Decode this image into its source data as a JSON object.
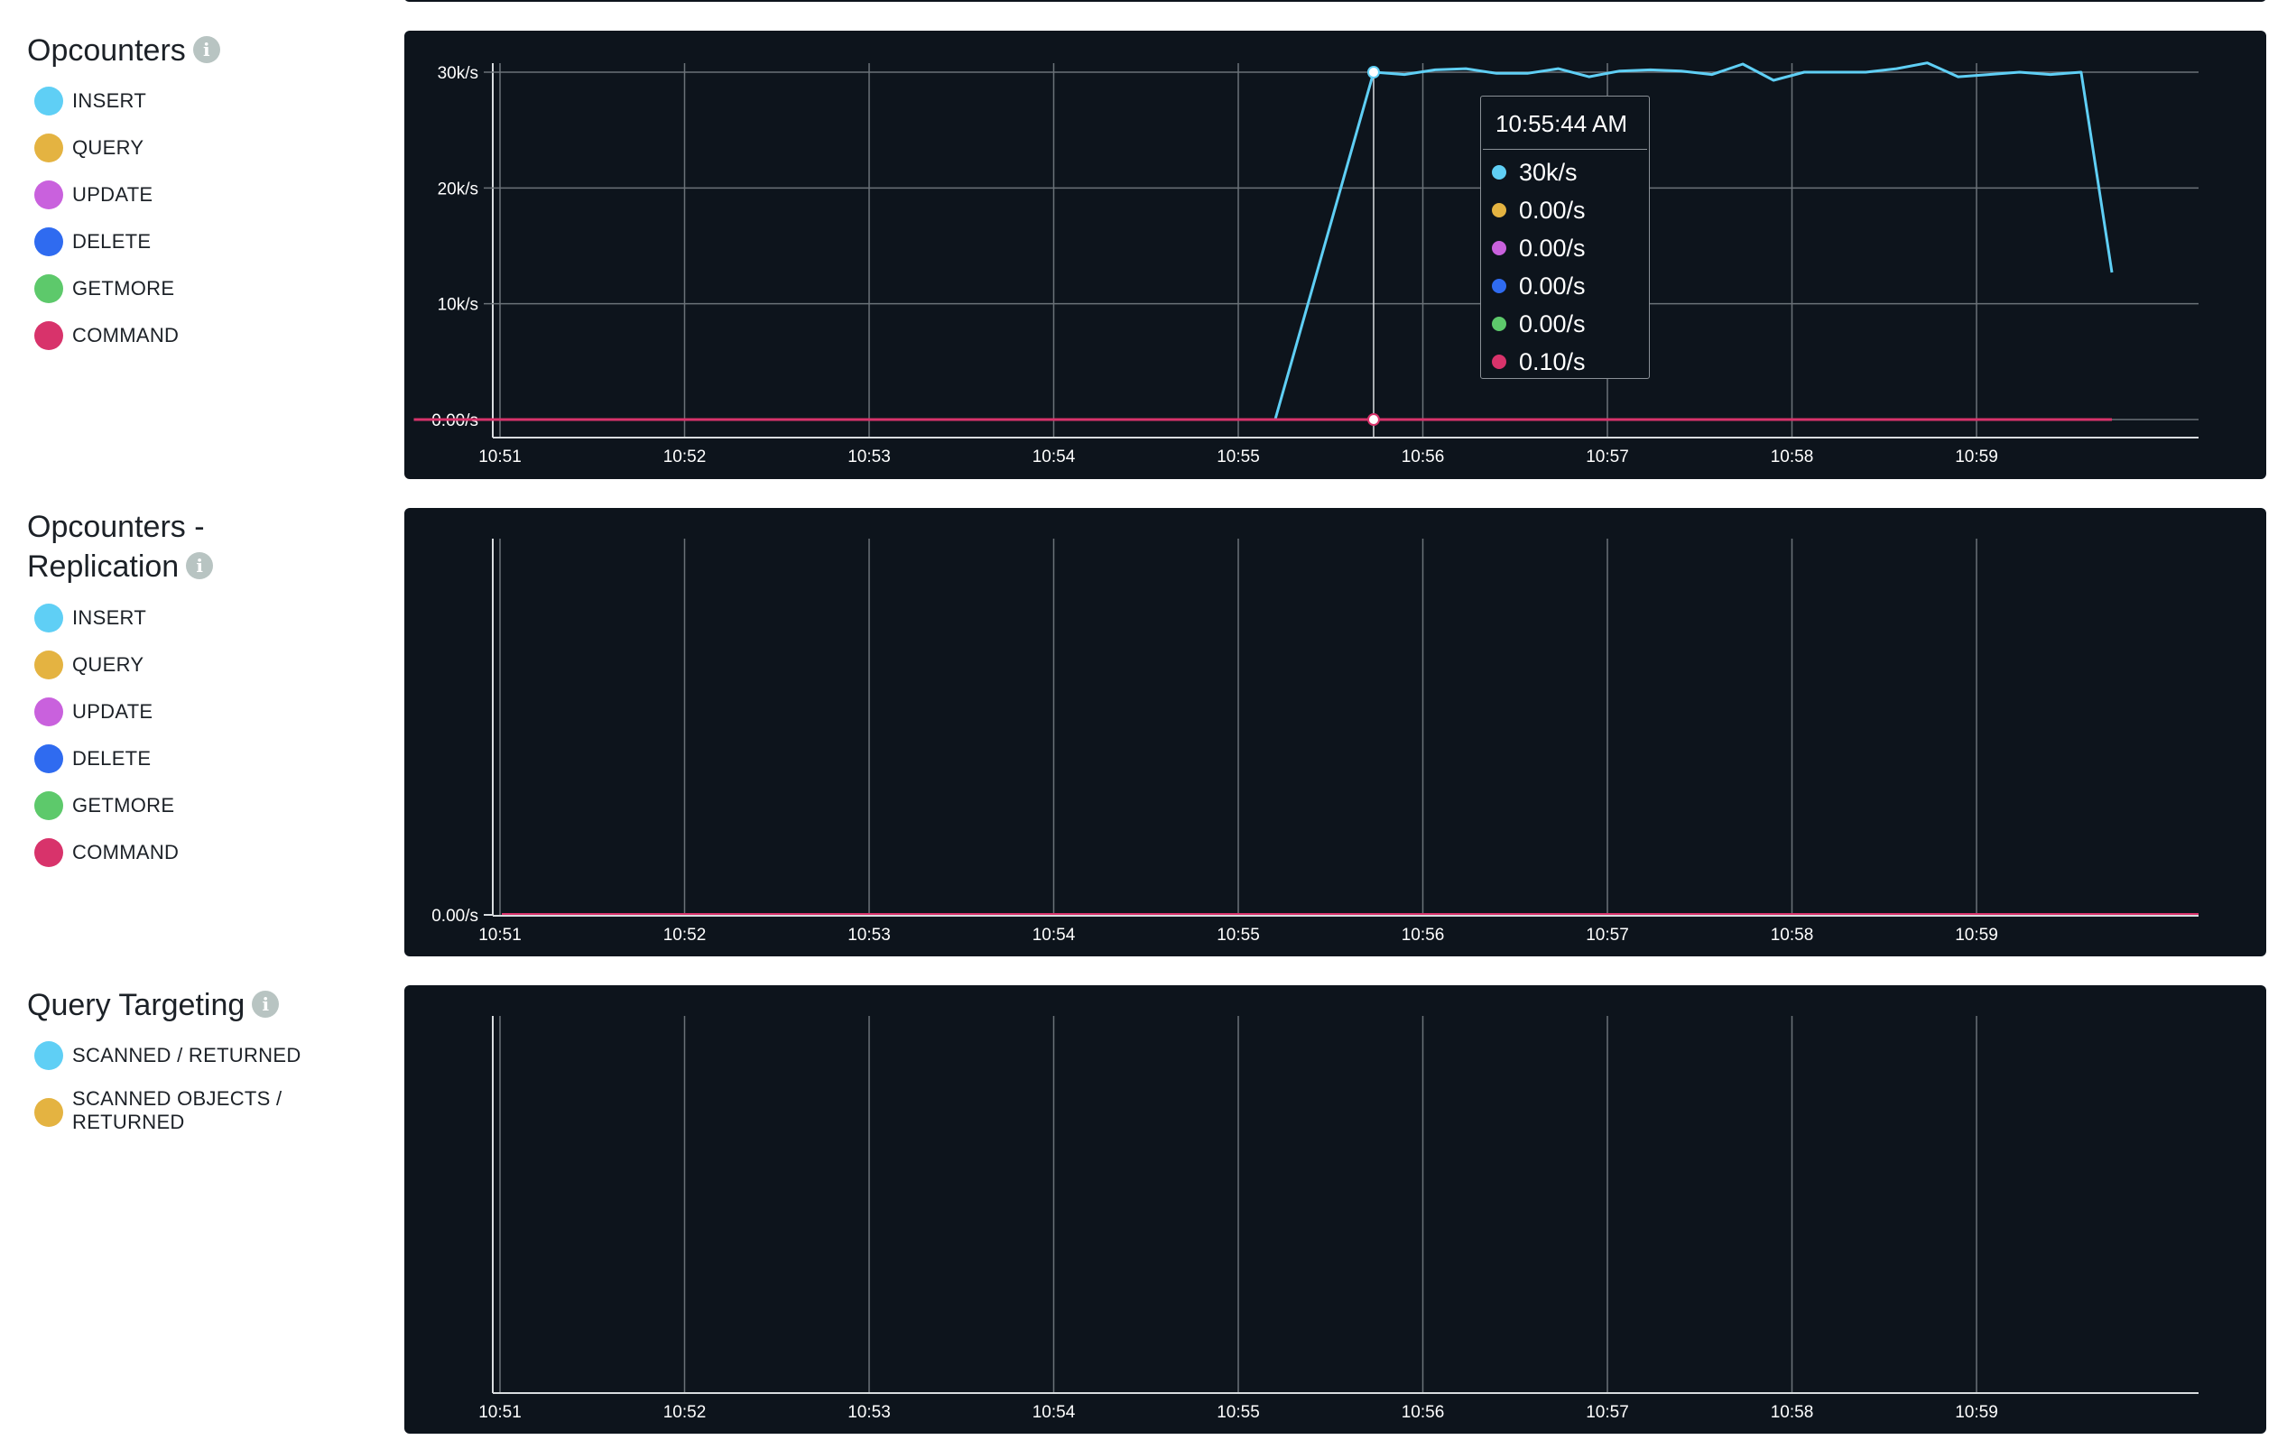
{
  "x_ticks": [
    "10:51",
    "10:52",
    "10:53",
    "10:54",
    "10:55",
    "10:56",
    "10:57",
    "10:58",
    "10:59"
  ],
  "colors": {
    "insert": "#5fcff5",
    "query": "#e4b341",
    "update": "#c961dd",
    "delete": "#2f6bf0",
    "getmore": "#5dc96b",
    "command": "#d8336b",
    "panel_bg": "#0d141c",
    "grid": "#6b7278"
  },
  "sections": [
    {
      "title": "Opcounters",
      "info_icon": "info-icon",
      "legend": [
        "INSERT",
        "QUERY",
        "UPDATE",
        "DELETE",
        "GETMORE",
        "COMMAND"
      ],
      "legend_colors": [
        "#5fcff5",
        "#e4b341",
        "#c961dd",
        "#2f6bf0",
        "#5dc96b",
        "#d8336b"
      ]
    },
    {
      "title_line1": "Opcounters -",
      "title_line2": "Replication",
      "info_icon": "info-icon",
      "legend": [
        "INSERT",
        "QUERY",
        "UPDATE",
        "DELETE",
        "GETMORE",
        "COMMAND"
      ],
      "legend_colors": [
        "#5fcff5",
        "#e4b341",
        "#c961dd",
        "#2f6bf0",
        "#5dc96b",
        "#d8336b"
      ]
    },
    {
      "title": "Query Targeting",
      "info_icon": "info-icon",
      "legend_item1": "SCANNED / RETURNED",
      "legend_item2_line1": "SCANNED OBJECTS /",
      "legend_item2_line2": "RETURNED",
      "legend_colors": [
        "#5fcff5",
        "#e4b341"
      ]
    }
  ],
  "chart_data": [
    {
      "type": "line",
      "y_ticks": [
        "0.00/s",
        "10k/s",
        "20k/s",
        "30k/s"
      ],
      "ylim": [
        0,
        30000
      ],
      "x_domain": [
        "10:50:28",
        "10:59:44"
      ],
      "series": [
        {
          "name": "INSERT",
          "color": "#5fcff5",
          "points": [
            [
              "10:50:32",
              0
            ],
            [
              "10:55:12",
              0
            ],
            [
              "10:55:44",
              30000
            ],
            [
              "10:55:54",
              29800
            ],
            [
              "10:56:04",
              30200
            ],
            [
              "10:56:14",
              30300
            ],
            [
              "10:56:24",
              29900
            ],
            [
              "10:56:34",
              29900
            ],
            [
              "10:56:44",
              30300
            ],
            [
              "10:56:54",
              29600
            ],
            [
              "10:57:04",
              30100
            ],
            [
              "10:57:14",
              30200
            ],
            [
              "10:57:24",
              30100
            ],
            [
              "10:57:34",
              29800
            ],
            [
              "10:57:44",
              30700
            ],
            [
              "10:57:54",
              29300
            ],
            [
              "10:58:04",
              30000
            ],
            [
              "10:58:14",
              30000
            ],
            [
              "10:58:24",
              30000
            ],
            [
              "10:58:34",
              30300
            ],
            [
              "10:58:44",
              30800
            ],
            [
              "10:58:54",
              29600
            ],
            [
              "10:59:04",
              29800
            ],
            [
              "10:59:14",
              30000
            ],
            [
              "10:59:24",
              29800
            ],
            [
              "10:59:34",
              30000
            ],
            [
              "10:59:44",
              12700
            ]
          ]
        },
        {
          "name": "QUERY",
          "color": "#e4b341",
          "constant": 0
        },
        {
          "name": "UPDATE",
          "color": "#c961dd",
          "constant": 0
        },
        {
          "name": "DELETE",
          "color": "#2f6bf0",
          "constant": 0
        },
        {
          "name": "GETMORE",
          "color": "#5dc96b",
          "constant": 0
        },
        {
          "name": "COMMAND",
          "color": "#d8336b",
          "constant": 0.1
        }
      ],
      "tooltip": {
        "time": "10:55:44 AM",
        "values": [
          "30k/s",
          "0.00/s",
          "0.00/s",
          "0.00/s",
          "0.00/s",
          "0.10/s"
        ],
        "colors": [
          "#5fcff5",
          "#e4b341",
          "#c961dd",
          "#2f6bf0",
          "#5dc96b",
          "#d8336b"
        ]
      }
    },
    {
      "type": "line",
      "y_ticks": [
        "0.00/s"
      ],
      "series": [
        {
          "name": "INSERT",
          "color": "#5fcff5",
          "constant": 0
        },
        {
          "name": "COMMAND",
          "color": "#d8336b",
          "constant": 0
        }
      ]
    },
    {
      "type": "line",
      "y_ticks": [],
      "series": []
    }
  ]
}
